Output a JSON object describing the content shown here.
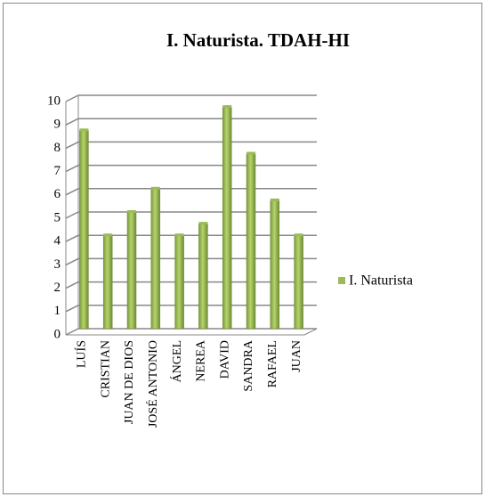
{
  "chart_data": {
    "type": "bar",
    "title": "I. Naturista. TDAH-HI",
    "categories": [
      "LUÍS",
      "CRISTIAN",
      "JUAN DE DIOS",
      "JOSÉ ANTONIO",
      "ÁNGEL",
      "NEREA",
      "DAVID",
      "SANDRA",
      "RAFAEL",
      "JUAN"
    ],
    "series": [
      {
        "name": "I. Naturista",
        "color": "#9bbb59",
        "values": [
          8.5,
          4,
          5,
          6,
          4,
          4.5,
          9.5,
          7.5,
          5.5,
          4
        ]
      }
    ],
    "ylim": [
      0,
      10
    ],
    "yticks": [
      0,
      1,
      2,
      3,
      4,
      5,
      6,
      7,
      8,
      9,
      10
    ],
    "grid": true,
    "legend": "right"
  }
}
